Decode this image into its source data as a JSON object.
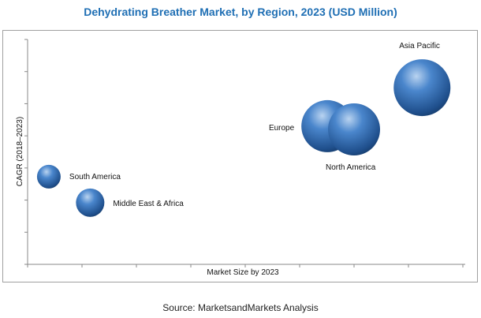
{
  "chart_data": {
    "type": "scatter",
    "subtype": "bubble",
    "title": "Dehydrating Breather Market, by Region, 2023 (USD Million)",
    "xlabel": "Market Size by 2023",
    "ylabel": "CAGR (2018–2023)",
    "xlim": [
      0,
      8
    ],
    "ylim": [
      0,
      7
    ],
    "grid": false,
    "points": [
      {
        "name": "South America",
        "x": 0.39,
        "y": 2.73,
        "size": 15
      },
      {
        "name": "Middle East  & Africa",
        "x": 1.15,
        "y": 1.92,
        "size": 18
      },
      {
        "name": "Europe",
        "x": 5.51,
        "y": 4.3,
        "size": 33
      },
      {
        "name": "North America",
        "x": 6.0,
        "y": 4.2,
        "size": 33
      },
      {
        "name": "Asia Pacific",
        "x": 7.25,
        "y": 5.5,
        "size": 36
      }
    ],
    "bubble_color": "#3a70b5"
  },
  "source": "Source: MarketsandMarkets Analysis"
}
